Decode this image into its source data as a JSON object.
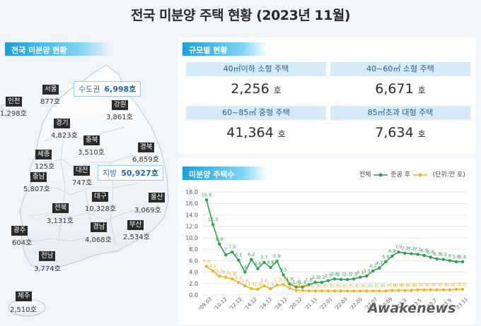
{
  "title": "전국 미분양 주택 현황 (2023년 11월)",
  "left_panel": {
    "label": "전국 미분양 현황",
    "capital_label": "수도권",
    "capital_value": "6,998호",
    "local_label": "지방",
    "local_value": "50,927호",
    "regions": [
      {
        "name": "서울",
        "value": "877호"
      },
      {
        "name": "인천",
        "value": "1,298호"
      },
      {
        "name": "강원",
        "value": "3,861호"
      },
      {
        "name": "경기",
        "value": "4,823호"
      },
      {
        "name": "충북",
        "value": "3,510호"
      },
      {
        "name": "경북",
        "value": "6,859호"
      },
      {
        "name": "세종",
        "value": "125호"
      },
      {
        "name": "대전",
        "value": "747호"
      },
      {
        "name": "충남",
        "value": "5,807호"
      },
      {
        "name": "대구",
        "value": "10,328호"
      },
      {
        "name": "울산",
        "value": "3,069호"
      },
      {
        "name": "전북",
        "value": "3,131호"
      },
      {
        "name": "경남",
        "value": "4,068호"
      },
      {
        "name": "부산",
        "value": "2,534호"
      },
      {
        "name": "광주",
        "value": "604호"
      },
      {
        "name": "전남",
        "value": "3,774호"
      },
      {
        "name": "제주",
        "value": "2,510호"
      }
    ]
  },
  "size_panel": {
    "label": "규모별 현황",
    "cells": [
      {
        "header": "40㎡이하 소형 주택",
        "value": "2,256",
        "unit": "호"
      },
      {
        "header": "40~60㎡ 소형 주택",
        "value": "6,671",
        "unit": "호"
      },
      {
        "header": "60~85㎡ 중형 주택",
        "value": "41,364",
        "unit": "호"
      },
      {
        "header": "85㎡초과 대형 주택",
        "value": "7,634",
        "unit": "호"
      }
    ]
  },
  "chart_panel": {
    "label": "미분양 주택수",
    "legend_total": "전체",
    "legend_completed": "준공 후",
    "unit_note": "(단위:만 호)"
  },
  "colors": {
    "total": "#2e9e4f",
    "completed": "#f0b323",
    "accent": "#1aa0dc"
  },
  "chart_data": {
    "type": "line",
    "ylim": [
      0,
      18
    ],
    "yticks": [
      "0.0",
      "2.0",
      "4.0",
      "6.0",
      "8.0",
      "10.0",
      "12.0",
      "14.0",
      "16.0",
      "18.0"
    ],
    "xticks": [
      "'09.03",
      "'10.12",
      "'12.12",
      "'14.12",
      "'16.12",
      "'18.12",
      "'20.12",
      "'21.11",
      "'22.01",
      "'22.03",
      "'22.05",
      "'22.07",
      "'22.09",
      "'23.3",
      "'23.5",
      "'23.7",
      "'23.9",
      "'23.11"
    ],
    "series": [
      {
        "name": "전체",
        "values": [
          16.6,
          12.3,
          8.9,
          7.0,
          7.5,
          6.1,
          4.0,
          6.2,
          4.6,
          5.7,
          4.8,
          5.9,
          3.5,
          1.9,
          1.4,
          1.4,
          1.8,
          2.2,
          2.2,
          2.5,
          2.8,
          2.7,
          2.7,
          2.8,
          3.1,
          3.3,
          4.2,
          4.7,
          5.8,
          6.8,
          7.5,
          7.3,
          7.2,
          7.1,
          6.9,
          6.6,
          6.3,
          6.2,
          6.0,
          5.8,
          5.8
        ]
      },
      {
        "name": "준공 후",
        "values": [
          5.0,
          4.2,
          3.3,
          3.1,
          2.8,
          2.2,
          1.6,
          1.1,
          1.0,
          1.6,
          1.1,
          1.7,
          1.8,
          1.2,
          0.8,
          0.8,
          0.7,
          0.7,
          0.7,
          0.7,
          0.7,
          0.7,
          0.7,
          0.7,
          0.7,
          0.7,
          0.7,
          0.7,
          0.7,
          0.8,
          0.8,
          0.8,
          0.8,
          0.9,
          0.9,
          0.9,
          0.9,
          0.9,
          0.9,
          1.0,
          1.0
        ]
      }
    ]
  },
  "watermark": "Awakenews"
}
